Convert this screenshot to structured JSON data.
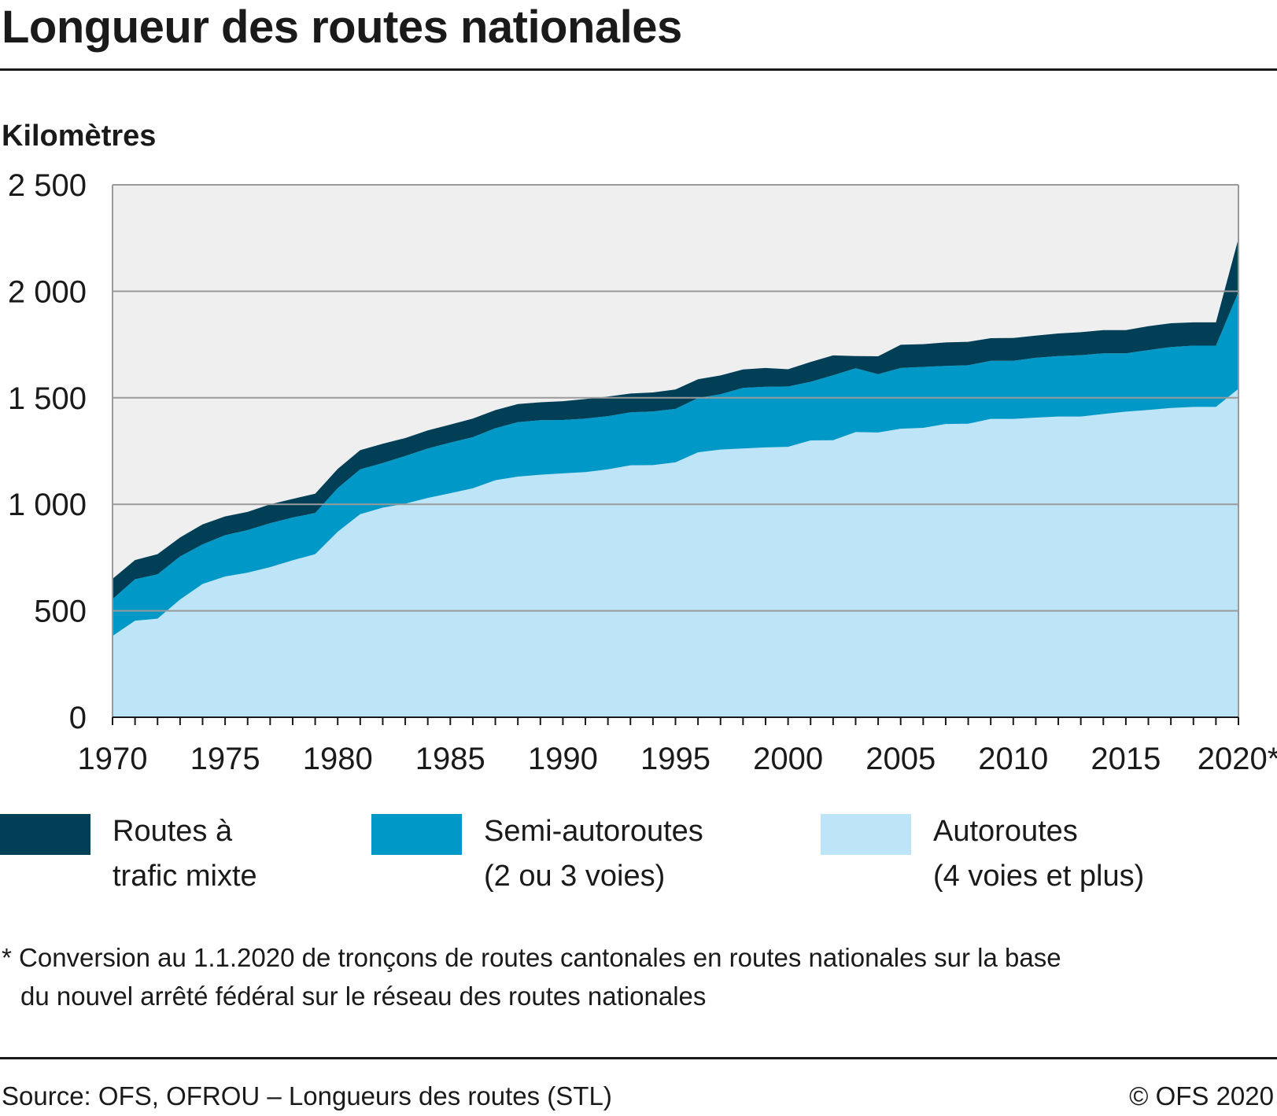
{
  "title": "Longueur des routes nationales",
  "unit_label": "Kilomètres",
  "legend": [
    {
      "line1": "Routes à",
      "line2": "trafic mixte",
      "color": "#003f56"
    },
    {
      "line1": "Semi-autoroutes",
      "line2": "(2 ou 3 voies)",
      "color": "#0098c6"
    },
    {
      "line1": "Autoroutes",
      "line2": "(4 voies et plus)",
      "color": "#bde4f7"
    }
  ],
  "footnote": {
    "line1": "* Conversion au 1.1.2020 de tronçons de routes cantonales en routes nationales sur la base",
    "line2": "du nouvel arrêté fédéral sur le réseau des routes nationales"
  },
  "source": "Source: OFS, OFROU – Longueurs des routes (STL)",
  "copyright": "© OFS 2020",
  "chart_data": {
    "type": "area",
    "stacked": true,
    "title": "Longueur des routes nationales",
    "ylabel": "Kilomètres",
    "ylim": [
      0,
      2500
    ],
    "xlim": [
      1970,
      2020
    ],
    "y_ticks": [
      0,
      500,
      1000,
      1500,
      2000,
      2500
    ],
    "y_tick_labels": [
      "0",
      "500",
      "1 000",
      "1 500",
      "2 000",
      "2 500"
    ],
    "x_ticks": [
      1970,
      1975,
      1980,
      1985,
      1990,
      1995,
      2000,
      2005,
      2010,
      2015,
      2020
    ],
    "x_tick_labels": [
      "1970",
      "1975",
      "1980",
      "1985",
      "1990",
      "1995",
      "2000",
      "2005",
      "2010",
      "2015",
      "2020*"
    ],
    "grid": true,
    "background": "#efefef",
    "x": [
      1970,
      1971,
      1972,
      1973,
      1974,
      1975,
      1976,
      1977,
      1978,
      1979,
      1980,
      1981,
      1982,
      1983,
      1984,
      1985,
      1986,
      1987,
      1988,
      1989,
      1990,
      1991,
      1992,
      1993,
      1994,
      1995,
      1996,
      1997,
      1998,
      1999,
      2000,
      2001,
      2002,
      2003,
      2004,
      2005,
      2006,
      2007,
      2008,
      2009,
      2010,
      2011,
      2012,
      2013,
      2014,
      2015,
      2016,
      2017,
      2018,
      2019,
      2020
    ],
    "series": [
      {
        "name": "Autoroutes (4 voies et plus)",
        "color": "#bde4f7",
        "values": [
          382,
          453,
          463,
          553,
          626,
          661,
          679,
          705,
          737,
          766,
          871,
          954,
          984,
          1003,
          1030,
          1052,
          1075,
          1113,
          1130,
          1139,
          1145,
          1151,
          1164,
          1183,
          1184,
          1197,
          1244,
          1257,
          1262,
          1267,
          1270,
          1300,
          1301,
          1339,
          1337,
          1355,
          1359,
          1377,
          1378,
          1401,
          1401,
          1407,
          1412,
          1412,
          1424,
          1435,
          1443,
          1452,
          1457,
          1457,
          1542
        ]
      },
      {
        "name": "Semi-autoroutes (2 ou 3 voies)",
        "color": "#0098c6",
        "values": [
          173,
          195,
          208,
          202,
          186,
          194,
          200,
          206,
          201,
          193,
          205,
          210,
          210,
          224,
          232,
          238,
          240,
          244,
          256,
          256,
          251,
          251,
          250,
          249,
          252,
          251,
          255,
          260,
          285,
          285,
          283,
          275,
          305,
          300,
          274,
          285,
          286,
          273,
          275,
          273,
          273,
          281,
          284,
          288,
          285,
          274,
          281,
          286,
          288,
          288,
          455
        ]
      },
      {
        "name": "Routes à trafic mixte",
        "color": "#003f56",
        "values": [
          95,
          90,
          95,
          89,
          94,
          88,
          85,
          89,
          87,
          91,
          90,
          90,
          90,
          84,
          85,
          84,
          87,
          85,
          85,
          84,
          88,
          92,
          92,
          88,
          89,
          91,
          88,
          88,
          86,
          88,
          81,
          93,
          93,
          57,
          84,
          109,
          107,
          110,
          110,
          106,
          107,
          104,
          106,
          108,
          109,
          109,
          112,
          112,
          109,
          109,
          251
        ]
      }
    ]
  }
}
